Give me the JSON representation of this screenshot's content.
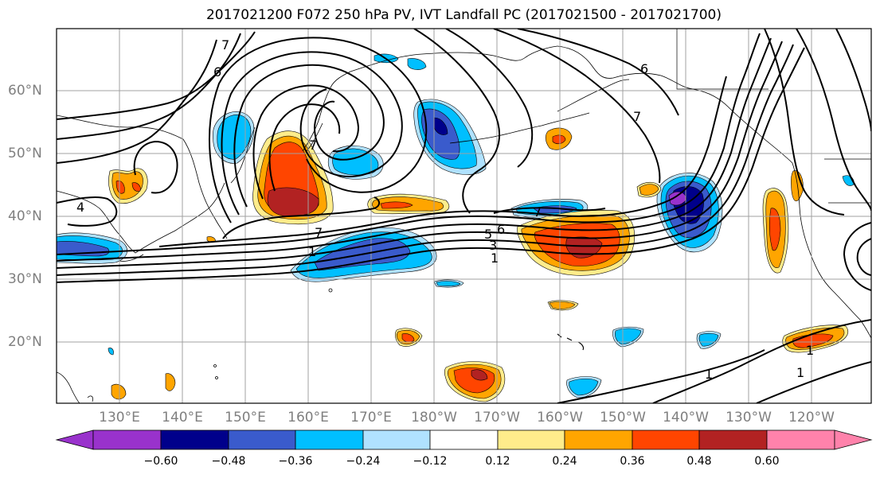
{
  "title": "2017021200 F072 250 hPa PV, IVT Landfall PC (2017021500 - 2017021700)",
  "latitude_labels": [
    "60°N",
    "50°N",
    "40°N",
    "30°N",
    "20°N"
  ],
  "longitude_labels": [
    "130°E",
    "140°E",
    "150°E",
    "160°E",
    "170°E",
    "180°W",
    "170°W",
    "160°W",
    "150°W",
    "140°W",
    "130°W",
    "120°W"
  ],
  "contour_labels": [
    "7",
    "6",
    "7",
    "7",
    "1",
    "6",
    "5",
    "3",
    "1",
    "7",
    "7",
    "6",
    "1",
    "1",
    "1",
    "4"
  ],
  "colorbar": {
    "tick_labels": [
      "−0.60",
      "−0.48",
      "−0.36",
      "−0.24",
      "−0.12",
      "0.12",
      "0.24",
      "0.36",
      "0.48",
      "0.60"
    ],
    "colors": [
      "#9932cc",
      "#00008b",
      "#3a5bcc",
      "#00bfff",
      "#b0e2ff",
      "#ffffff",
      "#ffec8b",
      "#ffa500",
      "#ff4500",
      "#b22222",
      "#ff82ab"
    ]
  },
  "colors": {
    "coastline": "#000000",
    "grid": "#a0a0a0",
    "contour": "#000000",
    "axis_labels": "#7f7f7f"
  }
}
